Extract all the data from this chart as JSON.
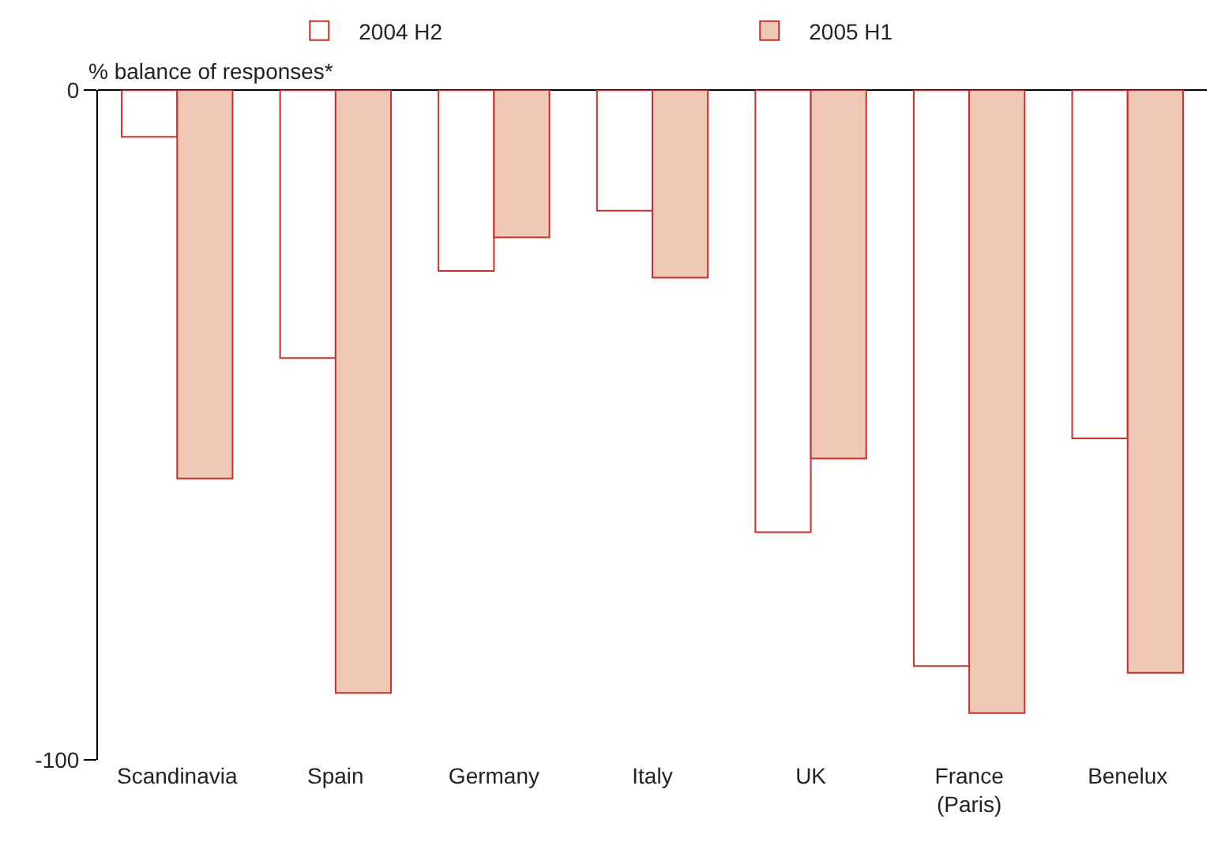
{
  "chart_data": {
    "type": "bar",
    "ylabel": "% balance of responses*",
    "categories": [
      "Scandinavia",
      "Spain",
      "Germany",
      "Italy",
      "UK",
      "France\n(Paris)",
      "Benelux"
    ],
    "series": [
      {
        "name": "2004 H2",
        "color": "#ffffff",
        "values": [
          -7,
          -40,
          -27,
          -18,
          -66,
          -86,
          -52
        ]
      },
      {
        "name": "2005 H1",
        "color": "#efc9b6",
        "values": [
          -58,
          -90,
          -22,
          -28,
          -55,
          -93,
          -87
        ]
      }
    ],
    "ylim": [
      -100,
      0
    ],
    "yticks": [
      0,
      -100
    ],
    "legend": "top"
  }
}
